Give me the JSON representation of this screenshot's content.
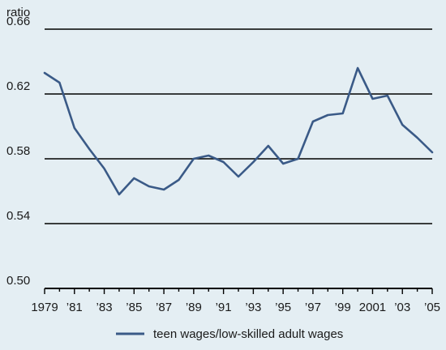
{
  "chart_data": {
    "type": "line",
    "title": "",
    "ylabel": "ratio",
    "xlabel": "",
    "ylim": [
      0.5,
      0.66
    ],
    "xlim": [
      1979,
      2005
    ],
    "yticks": [
      0.5,
      0.54,
      0.58,
      0.62,
      0.66
    ],
    "ytick_labels": [
      "0.50",
      "0.54",
      "0.58",
      "0.62",
      "0.66"
    ],
    "xticks": [
      1979,
      1981,
      1983,
      1985,
      1987,
      1989,
      1991,
      1993,
      1995,
      1997,
      1999,
      2001,
      2003,
      2005
    ],
    "xtick_labels": [
      "1979",
      "’81",
      "’83",
      "’85",
      "’87",
      "’89",
      "’91",
      "’93",
      "’95",
      "’97",
      "’99",
      "2001",
      "’03",
      "’05"
    ],
    "grid": "horizontal",
    "legend_position": "bottom",
    "x": [
      1979,
      1980,
      1981,
      1982,
      1983,
      1984,
      1985,
      1986,
      1987,
      1988,
      1989,
      1990,
      1991,
      1992,
      1993,
      1994,
      1995,
      1996,
      1997,
      1998,
      1999,
      2000,
      2001,
      2002,
      2003,
      2004,
      2005
    ],
    "series": [
      {
        "name": "teen wages/low-skilled adult wages",
        "color": "#3a5a87",
        "values": [
          0.633,
          0.627,
          0.599,
          0.586,
          0.574,
          0.558,
          0.568,
          0.563,
          0.561,
          0.567,
          0.58,
          0.582,
          0.578,
          0.569,
          0.578,
          0.588,
          0.577,
          0.58,
          0.603,
          0.607,
          0.608,
          0.636,
          0.617,
          0.619,
          0.601,
          0.593,
          0.584
        ]
      }
    ]
  },
  "colors": {
    "background": "#e4eef3",
    "line": "#3a5a87",
    "grid": "#000000",
    "text": "#1a1a1a"
  }
}
